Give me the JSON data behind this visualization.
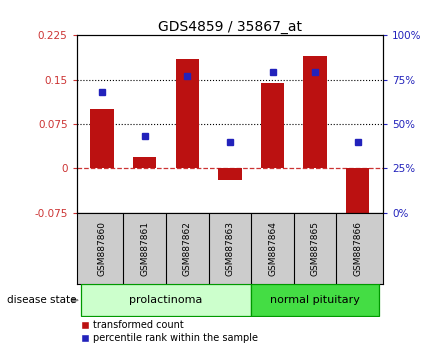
{
  "title": "GDS4859 / 35867_at",
  "samples": [
    "GSM887860",
    "GSM887861",
    "GSM887862",
    "GSM887863",
    "GSM887864",
    "GSM887865",
    "GSM887866"
  ],
  "bar_values": [
    0.1,
    0.02,
    0.185,
    -0.02,
    0.145,
    0.19,
    -0.085
  ],
  "dot_values": [
    0.13,
    0.055,
    0.157,
    0.045,
    0.163,
    0.163,
    0.045
  ],
  "ylim_left": [
    -0.075,
    0.225
  ],
  "ylim_right": [
    0,
    100
  ],
  "yticks_left": [
    -0.075,
    0,
    0.075,
    0.15,
    0.225
  ],
  "yticks_right": [
    0,
    25,
    50,
    75,
    100
  ],
  "ytick_labels_left": [
    "-0.075",
    "0",
    "0.075",
    "0.15",
    "0.225"
  ],
  "ytick_labels_right": [
    "0%",
    "25%",
    "50%",
    "75%",
    "100%"
  ],
  "hlines": [
    0.075,
    0.15
  ],
  "bar_color": "#bb1111",
  "dot_color": "#2222bb",
  "zero_line_color": "#cc3333",
  "groups": [
    {
      "label": "prolactinoma",
      "start": 0,
      "end": 3,
      "color": "#ccffcc",
      "border_color": "#009900"
    },
    {
      "label": "normal pituitary",
      "start": 4,
      "end": 6,
      "color": "#44dd44",
      "border_color": "#009900"
    }
  ],
  "disease_state_label": "disease state",
  "legend_bar_label": "transformed count",
  "legend_dot_label": "percentile rank within the sample",
  "bar_width": 0.55,
  "background_color": "#ffffff",
  "plot_bg_color": "#ffffff",
  "tick_label_color_left": "#cc3333",
  "tick_label_color_right": "#2222bb",
  "sample_bg_color": "#cccccc",
  "sample_border_color": "#999999"
}
